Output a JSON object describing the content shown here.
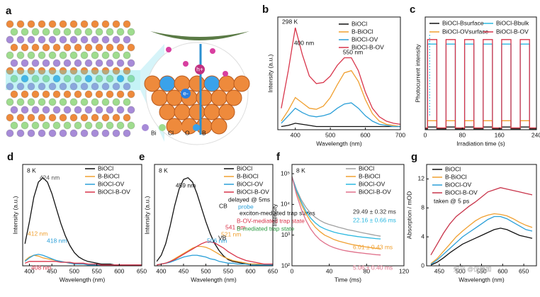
{
  "illustration": {
    "panel_label": "a",
    "legend": [
      "Bi",
      "Cl",
      "O",
      "B"
    ],
    "labels": [
      "h+",
      "e-"
    ]
  },
  "watermark": "知乎 @仪器加",
  "chart_data": [
    {
      "panel": "b",
      "type": "line",
      "xlabel": "Wavelength (nm)",
      "ylabel": "Intensity (a.u.)",
      "annotations": [
        "298 K",
        "400 nm",
        "550 nm"
      ],
      "x": [
        360,
        380,
        400,
        420,
        440,
        460,
        480,
        500,
        520,
        540,
        560,
        580,
        600,
        620,
        640,
        660,
        680,
        700
      ],
      "xlim": [
        350,
        700
      ],
      "xticks": [
        400,
        500,
        600,
        700
      ],
      "ylim": [
        0,
        1.05
      ],
      "series": [
        {
          "name": "BiOCl",
          "color": "#111111",
          "values": [
            0.03,
            0.04,
            0.06,
            0.05,
            0.04,
            0.03,
            0.03,
            0.03,
            0.03,
            0.03,
            0.03,
            0.03,
            0.03,
            0.03,
            0.03,
            0.03,
            0.03,
            0.03
          ]
        },
        {
          "name": "B-BiOCl",
          "color": "#f0a030",
          "values": [
            0.08,
            0.18,
            0.3,
            0.25,
            0.2,
            0.19,
            0.22,
            0.3,
            0.42,
            0.53,
            0.55,
            0.45,
            0.28,
            0.15,
            0.08,
            0.05,
            0.04,
            0.03
          ]
        },
        {
          "name": "BiOCl-OV",
          "color": "#2a9fd8",
          "values": [
            0.06,
            0.13,
            0.2,
            0.16,
            0.13,
            0.12,
            0.13,
            0.15,
            0.2,
            0.24,
            0.25,
            0.2,
            0.13,
            0.08,
            0.05,
            0.04,
            0.03,
            0.03
          ]
        },
        {
          "name": "BiOCl-B-OV",
          "color": "#d8344a",
          "values": [
            0.2,
            0.55,
            0.95,
            0.7,
            0.5,
            0.43,
            0.44,
            0.5,
            0.6,
            0.67,
            0.67,
            0.55,
            0.35,
            0.2,
            0.12,
            0.08,
            0.06,
            0.05
          ]
        }
      ]
    },
    {
      "panel": "c",
      "type": "line",
      "xlabel": "Irradiation time (s)",
      "ylabel": "Photocurrent intensity",
      "annotations": [],
      "x": [
        0,
        5,
        5,
        25,
        25,
        45,
        45,
        65,
        65,
        85,
        85,
        105,
        105,
        125,
        125,
        145,
        145,
        165,
        165,
        185,
        185,
        205,
        205,
        225,
        225,
        240
      ],
      "xlim": [
        0,
        240
      ],
      "xticks": [
        0,
        80,
        160,
        240
      ],
      "ylim": [
        0,
        1.25
      ],
      "series": [
        {
          "name": "BiOCl-Bsurface",
          "color": "#111111",
          "values": [
            0.01,
            0.01,
            0.03,
            0.03,
            0.01,
            0.01,
            0.03,
            0.03,
            0.01,
            0.01,
            0.03,
            0.03,
            0.01,
            0.01,
            0.03,
            0.03,
            0.01,
            0.01,
            0.03,
            0.03,
            0.01,
            0.01,
            0.03,
            0.03,
            0.01,
            0.01
          ]
        },
        {
          "name": "BiOCl-Bbulk",
          "color": "#2ab8e0",
          "values": [
            0.02,
            0.02,
            0.95,
            0.95,
            0.02,
            0.02,
            0.95,
            0.95,
            0.02,
            0.02,
            0.95,
            0.95,
            0.02,
            0.02,
            0.95,
            0.95,
            0.02,
            0.02,
            0.95,
            0.95,
            0.02,
            0.02,
            0.95,
            0.95,
            0.02,
            0.02
          ]
        },
        {
          "name": "BiOCl-OVsurface",
          "color": "#f0a030",
          "values": [
            0.02,
            0.02,
            0.1,
            0.1,
            0.02,
            0.02,
            0.1,
            0.1,
            0.02,
            0.02,
            0.1,
            0.1,
            0.02,
            0.02,
            0.1,
            0.1,
            0.02,
            0.02,
            0.1,
            0.1,
            0.02,
            0.02,
            0.1,
            0.1,
            0.02,
            0.02
          ]
        },
        {
          "name": "BiOCl-B-OV",
          "color": "#d8344a",
          "values": [
            0.02,
            0.02,
            1.0,
            1.0,
            0.02,
            0.02,
            1.0,
            1.0,
            0.02,
            0.02,
            1.0,
            1.0,
            0.02,
            0.02,
            1.0,
            1.0,
            0.02,
            0.02,
            1.0,
            1.0,
            0.02,
            0.02,
            1.0,
            1.0,
            0.02,
            0.02
          ]
        }
      ]
    },
    {
      "panel": "d",
      "type": "line",
      "xlabel": "Wavelength (nm)",
      "ylabel": "Intensity (a.u.)",
      "annotations": [
        "8 K",
        "424 nm",
        "412 nm",
        "418 nm",
        "408 nm"
      ],
      "x": [
        390,
        400,
        410,
        420,
        430,
        440,
        450,
        460,
        470,
        480,
        490,
        500,
        510,
        520,
        530,
        540,
        550,
        560,
        570,
        580,
        590,
        600,
        610,
        620,
        630,
        640,
        650
      ],
      "xlim": [
        385,
        650
      ],
      "xticks": [
        400,
        450,
        500,
        550,
        600,
        650
      ],
      "ylim": [
        0,
        1.15
      ],
      "series": [
        {
          "name": "BiOCl",
          "color": "#111111",
          "values": [
            0.25,
            0.5,
            0.78,
            0.95,
            1.0,
            0.95,
            0.82,
            0.65,
            0.48,
            0.34,
            0.23,
            0.15,
            0.1,
            0.07,
            0.05,
            0.04,
            0.03,
            0.02,
            0.02,
            0.02,
            0.01,
            0.01,
            0.01,
            0.01,
            0.01,
            0.01,
            0.01
          ]
        },
        {
          "name": "B-BiOCl",
          "color": "#f0a030",
          "values": [
            0.06,
            0.1,
            0.12,
            0.11,
            0.09,
            0.08,
            0.07,
            0.06,
            0.05,
            0.04,
            0.03,
            0.03,
            0.02,
            0.02,
            0.02,
            0.01,
            0.01,
            0.01,
            0.01,
            0.01,
            0.01,
            0.01,
            0.01,
            0.01,
            0.01,
            0.01,
            0.01
          ]
        },
        {
          "name": "BiOCl-OV",
          "color": "#2a9fd8",
          "values": [
            0.05,
            0.09,
            0.12,
            0.13,
            0.12,
            0.1,
            0.08,
            0.06,
            0.05,
            0.04,
            0.03,
            0.02,
            0.02,
            0.02,
            0.01,
            0.01,
            0.01,
            0.01,
            0.01,
            0.01,
            0.01,
            0.01,
            0.01,
            0.01,
            0.01,
            0.01,
            0.01
          ]
        },
        {
          "name": "BiOCl-B-OV",
          "color": "#d8344a",
          "values": [
            0.03,
            0.05,
            0.05,
            0.05,
            0.05,
            0.05,
            0.05,
            0.05,
            0.04,
            0.04,
            0.04,
            0.03,
            0.03,
            0.03,
            0.02,
            0.02,
            0.02,
            0.01,
            0.01,
            0.01,
            0.01,
            0.01,
            0.01,
            0.01,
            0.01,
            0.01,
            0.01
          ]
        }
      ]
    },
    {
      "panel": "e",
      "type": "line",
      "xlabel": "Wavelength (nm)",
      "ylabel": "Intensity (a.u.)",
      "annotations": [
        "8 K",
        "459 nm",
        "541 nm",
        "521 nm",
        "506 nm",
        "delayed @ 5ms",
        "probe",
        "exciton-mediated trap states",
        "B-OV-mediated trap state",
        "B-mediated trap state",
        "CB",
        "VB"
      ],
      "x": [
        390,
        400,
        410,
        420,
        430,
        440,
        450,
        460,
        470,
        480,
        490,
        500,
        510,
        520,
        530,
        540,
        550,
        560,
        570,
        580,
        590,
        600,
        610,
        620,
        630,
        640,
        650
      ],
      "xlim": [
        385,
        650
      ],
      "xticks": [
        400,
        450,
        500,
        550,
        600,
        650
      ],
      "ylim": [
        0,
        1.15
      ],
      "series": [
        {
          "name": "BiOCl",
          "color": "#111111",
          "values": [
            0.05,
            0.12,
            0.25,
            0.45,
            0.68,
            0.87,
            0.98,
            1.0,
            0.95,
            0.82,
            0.66,
            0.5,
            0.36,
            0.25,
            0.17,
            0.11,
            0.07,
            0.05,
            0.04,
            0.03,
            0.02,
            0.02,
            0.02,
            0.01,
            0.01,
            0.01,
            0.01
          ]
        },
        {
          "name": "B-BiOCl",
          "color": "#f0a030",
          "values": [
            0.01,
            0.02,
            0.03,
            0.05,
            0.08,
            0.11,
            0.14,
            0.17,
            0.2,
            0.22,
            0.22,
            0.21,
            0.19,
            0.16,
            0.13,
            0.1,
            0.08,
            0.06,
            0.05,
            0.04,
            0.03,
            0.02,
            0.02,
            0.02,
            0.01,
            0.01,
            0.01
          ]
        },
        {
          "name": "BiOCl-OV",
          "color": "#2a9fd8",
          "values": [
            0.01,
            0.02,
            0.03,
            0.04,
            0.06,
            0.08,
            0.1,
            0.11,
            0.12,
            0.12,
            0.11,
            0.1,
            0.08,
            0.07,
            0.05,
            0.04,
            0.03,
            0.03,
            0.02,
            0.02,
            0.02,
            0.01,
            0.01,
            0.01,
            0.01,
            0.01,
            0.01
          ]
        },
        {
          "name": "BiOCl-B-OV",
          "color": "#d8344a",
          "values": [
            0.01,
            0.02,
            0.03,
            0.05,
            0.07,
            0.1,
            0.13,
            0.16,
            0.19,
            0.22,
            0.25,
            0.27,
            0.27,
            0.26,
            0.23,
            0.2,
            0.16,
            0.13,
            0.1,
            0.08,
            0.06,
            0.05,
            0.04,
            0.03,
            0.02,
            0.02,
            0.02
          ]
        }
      ]
    },
    {
      "panel": "f",
      "type": "line",
      "yscale": "log",
      "xlabel": "Time (ms)",
      "ylabel": "Intensity",
      "annotations": [
        "8 K",
        "29.49 ± 0.32 ms",
        "22.16 ± 0.66 ms",
        "6.01 ± 0.43 ms",
        "5.06 ± 0.40 ms"
      ],
      "x": [
        0,
        5,
        10,
        15,
        20,
        25,
        30,
        35,
        40,
        45,
        50,
        55,
        60,
        65,
        70,
        75,
        80,
        85,
        90,
        95
      ],
      "xlim": [
        0,
        120
      ],
      "xticks": [
        0,
        40,
        80,
        120
      ],
      "ylim": [
        100,
        200000
      ],
      "yticks": [
        {
          "value": 100,
          "label": "10²"
        },
        {
          "value": 1000,
          "label": "10³"
        },
        {
          "value": 10000,
          "label": "10⁴"
        },
        {
          "value": 100000,
          "label": "10⁵"
        }
      ],
      "series": [
        {
          "name": "BiOCl",
          "color": "#a0a0a0",
          "values": [
            80000,
            30000,
            14000,
            8000,
            5200,
            3800,
            3000,
            2500,
            2200,
            2000,
            1800,
            1650,
            1500,
            1400,
            1300,
            1200,
            1120,
            1050,
            980,
            920
          ]
        },
        {
          "name": "B-BiOCl",
          "color": "#f0a030",
          "values": [
            80000,
            25000,
            10000,
            5000,
            2800,
            1800,
            1300,
            1000,
            850,
            720,
            640,
            580,
            530,
            490,
            460,
            430,
            410,
            390,
            370,
            350
          ]
        },
        {
          "name": "BiOCl-OV",
          "color": "#2ab8e0",
          "values": [
            80000,
            27000,
            12000,
            6000,
            3600,
            2500,
            1900,
            1600,
            1400,
            1250,
            1150,
            1070,
            1000,
            950,
            900,
            860,
            830,
            800,
            770,
            750
          ]
        },
        {
          "name": "BiOCl-B-OV",
          "color": "#e0708a",
          "values": [
            80000,
            20000,
            7000,
            3000,
            1600,
            1000,
            700,
            550,
            450,
            390,
            350,
            320,
            300,
            285,
            270,
            260,
            250,
            240,
            230,
            225
          ]
        }
      ]
    },
    {
      "panel": "g",
      "type": "line",
      "xlabel": "Wavelength (nm)",
      "ylabel": "Absorption / mOD",
      "annotations": [
        "taken @ 5 ps"
      ],
      "x": [
        430,
        445,
        460,
        475,
        490,
        505,
        520,
        535,
        550,
        565,
        580,
        595,
        610,
        625,
        640,
        655,
        670
      ],
      "xlim": [
        420,
        680
      ],
      "xticks": [
        450,
        500,
        550,
        600,
        650
      ],
      "ylim": [
        0,
        14
      ],
      "yticks": [
        0,
        4,
        8,
        12
      ],
      "series": [
        {
          "name": "BiOCl",
          "color": "#111111",
          "values": [
            0.1,
            0.5,
            1.1,
            1.8,
            2.4,
            3,
            3.4,
            3.8,
            4.2,
            4.6,
            5,
            5.2,
            5,
            4.6,
            4.2,
            4,
            3.8
          ]
        },
        {
          "name": "B-BiOCl",
          "color": "#f0a030",
          "values": [
            0.3,
            1,
            2,
            3,
            4,
            4.8,
            5.5,
            6.2,
            6.7,
            7,
            7.2,
            7.1,
            6.9,
            6.5,
            6,
            5.6,
            5.3
          ]
        },
        {
          "name": "BiOCl-OV",
          "color": "#2a9fd8",
          "values": [
            0.2,
            0.8,
            1.6,
            2.4,
            3.2,
            4,
            4.6,
            5.2,
            5.8,
            6.4,
            6.8,
            6.8,
            6.5,
            6,
            5.5,
            5,
            4.8
          ]
        },
        {
          "name": "BiOCl-B-OV",
          "color": "#c8344a",
          "values": [
            1.5,
            3,
            4.5,
            5.8,
            6.8,
            7.5,
            8.2,
            8.8,
            9.5,
            10.2,
            10.5,
            10.8,
            10.6,
            10.4,
            10.2,
            10,
            9.8
          ]
        }
      ]
    }
  ]
}
